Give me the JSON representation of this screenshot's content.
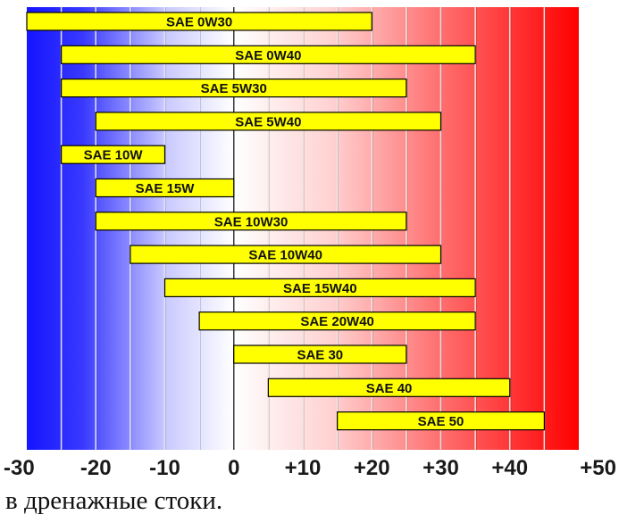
{
  "chart_data": {
    "type": "bar",
    "orientation": "horizontal",
    "subtype": "range",
    "title": "",
    "xlabel": "",
    "ylabel": "",
    "xlim": [
      -30,
      50
    ],
    "x_ticks": [
      -30,
      -20,
      -10,
      0,
      10,
      20,
      30,
      40,
      50
    ],
    "x_tick_labels": [
      "-30",
      "-20",
      "-10",
      "0",
      "+10",
      "+20",
      "+30",
      "+40",
      "+50"
    ],
    "grid": true,
    "background": "gradient from blue at -30 through white at 0 to red at +50",
    "bar_color": "#ffff00",
    "bar_edge_color": "#000000",
    "series": [
      {
        "label": "SAE 0W30",
        "start": -30,
        "end": 20
      },
      {
        "label": "SAE 0W40",
        "start": -25,
        "end": 35
      },
      {
        "label": "SAE 5W30",
        "start": -25,
        "end": 25
      },
      {
        "label": "SAE 5W40",
        "start": -20,
        "end": 30
      },
      {
        "label": "SAE 10W",
        "start": -25,
        "end": -10
      },
      {
        "label": "SAE 15W",
        "start": -20,
        "end": 0
      },
      {
        "label": "SAE 10W30",
        "start": -20,
        "end": 25
      },
      {
        "label": "SAE 10W40",
        "start": -15,
        "end": 30
      },
      {
        "label": "SAE 15W40",
        "start": -10,
        "end": 35
      },
      {
        "label": "SAE 20W40",
        "start": -5,
        "end": 35
      },
      {
        "label": "SAE 30",
        "start": 0,
        "end": 25
      },
      {
        "label": "SAE 40",
        "start": 5,
        "end": 40
      },
      {
        "label": "SAE 50",
        "start": 15,
        "end": 45
      }
    ]
  },
  "caption": "в дренажные стоки."
}
